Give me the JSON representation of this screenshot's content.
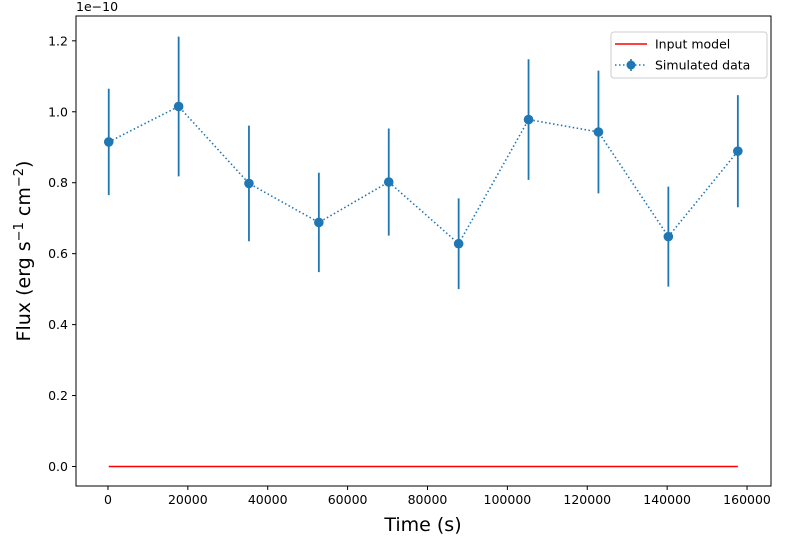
{
  "chart_data": {
    "type": "scatter",
    "xlabel": "Time (s)",
    "ylabel": "Flux (erg s",
    "ylabel_sup1": "−1",
    "ylabel_mid": " cm",
    "ylabel_sup2": "−2",
    "ylabel_end": ")",
    "offset_text": "1e−10",
    "xlim": [
      -8000,
      166000
    ],
    "ylim": [
      -0.055,
      1.27
    ],
    "x_ticks": [
      0,
      20000,
      40000,
      60000,
      80000,
      100000,
      120000,
      140000,
      160000
    ],
    "x_tick_labels": [
      "0",
      "20000",
      "40000",
      "60000",
      "80000",
      "100000",
      "120000",
      "140000",
      "160000"
    ],
    "y_ticks": [
      0.0,
      0.2,
      0.4,
      0.6,
      0.8,
      1.0,
      1.2
    ],
    "y_tick_labels": [
      "0.0",
      "0.2",
      "0.4",
      "0.6",
      "0.8",
      "1.0",
      "1.2"
    ],
    "legend_position": "upper-right",
    "series": [
      {
        "name": "Input model",
        "kind": "line",
        "color": "#ff0000",
        "x": [
          200,
          157700
        ],
        "y": [
          0.0,
          0.0
        ]
      },
      {
        "name": "Simulated data",
        "kind": "errorbar",
        "color": "#1f77b4",
        "linestyle": "dotted",
        "x": [
          200,
          17700,
          35300,
          52800,
          70300,
          87800,
          105300,
          122800,
          140300,
          157700
        ],
        "y": [
          0.915,
          1.015,
          0.798,
          0.688,
          0.802,
          0.628,
          0.978,
          0.943,
          0.648,
          0.889
        ],
        "yerr": [
          0.15,
          0.197,
          0.163,
          0.14,
          0.151,
          0.128,
          0.17,
          0.173,
          0.141,
          0.158
        ]
      }
    ]
  }
}
